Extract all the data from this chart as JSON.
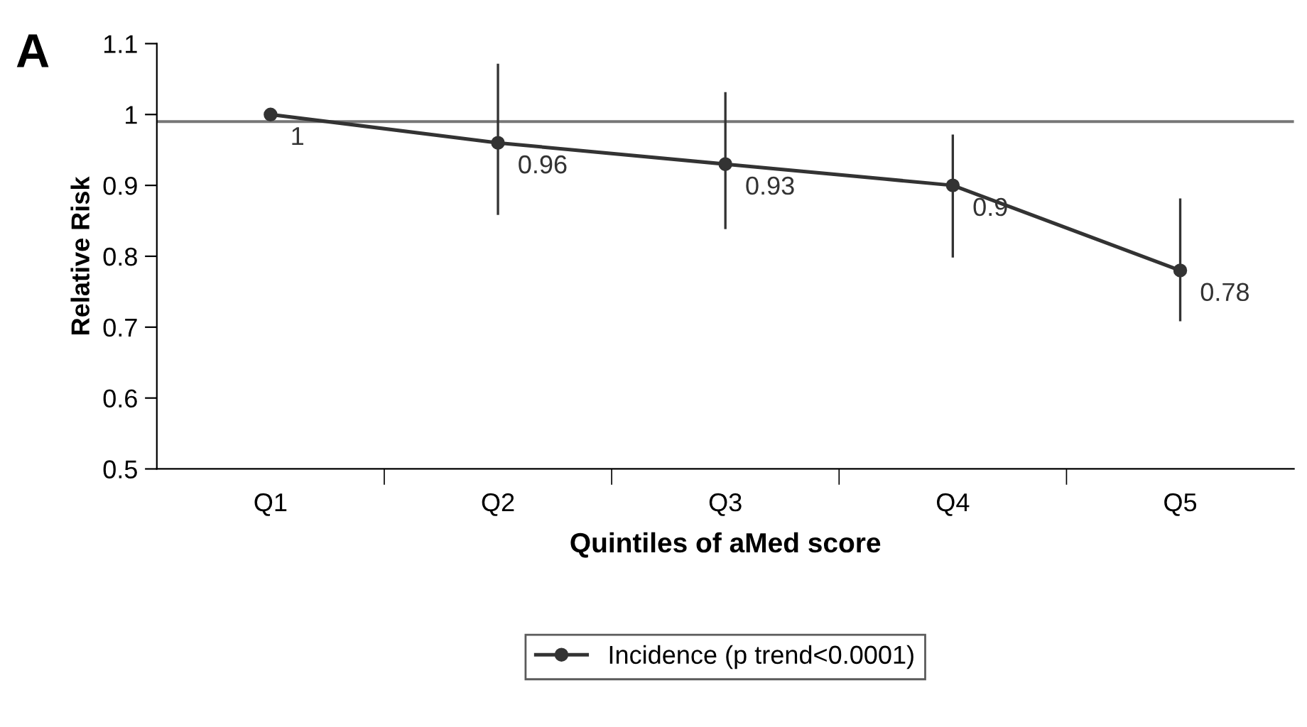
{
  "chart_data": {
    "type": "line",
    "title": "A",
    "xlabel": "Quintiles of aMed score",
    "ylabel": "Relative Risk",
    "categories": [
      "Q1",
      "Q2",
      "Q3",
      "Q4",
      "Q5"
    ],
    "series": [
      {
        "name": "Incidence (p trend<0.0001)",
        "color": "#333333",
        "values": [
          1,
          0.96,
          0.93,
          0.9,
          0.78
        ],
        "errors": [
          null,
          [
            0.86,
            1.07
          ],
          [
            0.84,
            1.03
          ],
          [
            0.8,
            0.97
          ],
          [
            0.71,
            0.88
          ]
        ]
      }
    ],
    "ylim": [
      0.5,
      1.1
    ],
    "yticks": [
      0.5,
      0.6,
      0.7,
      0.8,
      0.9,
      1,
      1.1
    ],
    "ref_lines": [
      {
        "axis": "y",
        "value": 0.99,
        "color": "#777777"
      }
    ],
    "data_labels": true,
    "marker": "circle",
    "line_style": "solid",
    "legend": "bottom",
    "grid": false
  }
}
